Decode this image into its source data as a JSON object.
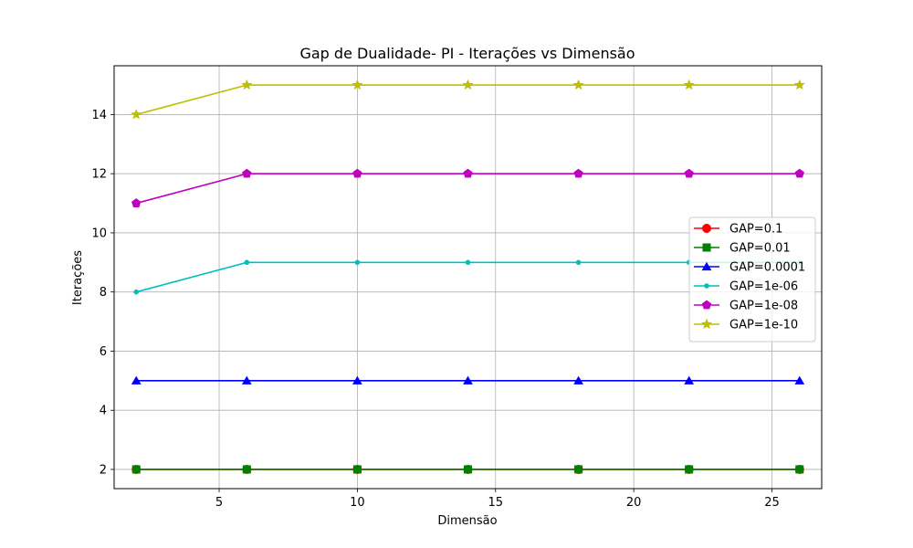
{
  "chart_data": {
    "type": "line",
    "title": "Gap de Dualidade- PI - Iterações vs Dimensão",
    "xlabel": "Dimensão",
    "ylabel": "Iterações",
    "xlim": [
      1.2,
      26.8
    ],
    "ylim": [
      1.35,
      15.65
    ],
    "xticks": [
      5,
      10,
      15,
      20,
      25
    ],
    "yticks": [
      2,
      4,
      6,
      8,
      10,
      12,
      14
    ],
    "grid": true,
    "legend_position": "center-right",
    "x": [
      2,
      6,
      10,
      14,
      18,
      22,
      26
    ],
    "series": [
      {
        "name": "GAP=0.1",
        "color": "#ff0000",
        "marker": "circle",
        "values": [
          2,
          2,
          2,
          2,
          2,
          2,
          2
        ]
      },
      {
        "name": "GAP=0.01",
        "color": "#008000",
        "marker": "square",
        "values": [
          2,
          2,
          2,
          2,
          2,
          2,
          2
        ]
      },
      {
        "name": "GAP=0.0001",
        "color": "#0000ff",
        "marker": "triangle",
        "values": [
          5,
          5,
          5,
          5,
          5,
          5,
          5
        ]
      },
      {
        "name": "GAP=1e-06",
        "color": "#00bfbf",
        "marker": "point",
        "values": [
          8,
          9,
          9,
          9,
          9,
          9,
          9
        ]
      },
      {
        "name": "GAP=1e-08",
        "color": "#bf00bf",
        "marker": "pentagon",
        "values": [
          11,
          12,
          12,
          12,
          12,
          12,
          12
        ]
      },
      {
        "name": "GAP=1e-10",
        "color": "#bfbf00",
        "marker": "star",
        "values": [
          14,
          15,
          15,
          15,
          15,
          15,
          15
        ]
      }
    ]
  }
}
